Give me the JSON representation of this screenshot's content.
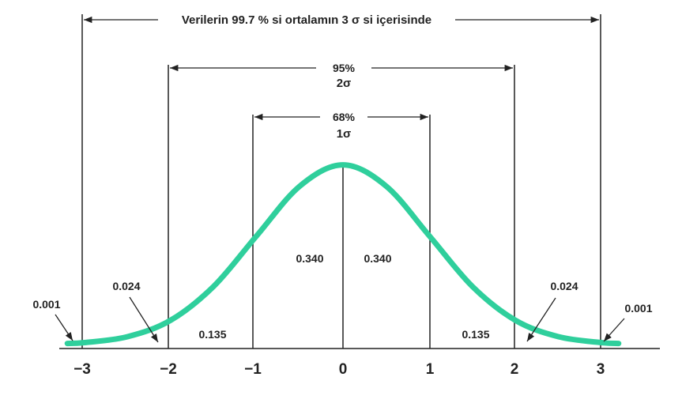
{
  "colors": {
    "curve": "#2fcf9c",
    "ink": "#222222",
    "background": "#ffffff"
  },
  "chart_data": {
    "type": "line",
    "series": [
      {
        "x": [
          -3.2,
          -3,
          -2.5,
          -2,
          -1.5,
          -1,
          -0.5,
          0,
          0.5,
          1,
          1.5,
          2,
          2.5,
          3,
          3.2
        ],
        "y": [
          0.0024,
          0.0044,
          0.0175,
          0.054,
          0.1295,
          0.242,
          0.352,
          0.399,
          0.352,
          0.242,
          0.1295,
          0.054,
          0.0175,
          0.0044,
          0.0024
        ]
      }
    ],
    "xlim": [
      -3.3,
      3.3
    ],
    "ticks": [
      "−3",
      "−2",
      "−1",
      "0",
      "1",
      "2",
      "3"
    ],
    "grid": false
  },
  "spans": {
    "three_sigma": "Verilerin 99.7 % si ortalamın 3 σ si içerisinde",
    "two_sigma_pct": "95%",
    "two_sigma": "2σ",
    "one_sigma_pct": "68%",
    "one_sigma": "1σ"
  },
  "areas": {
    "left_center": "0.340",
    "right_center": "0.340",
    "left_mid": "0.135",
    "right_mid": "0.135",
    "left_tail": "0.024",
    "right_tail": "0.024",
    "left_far": "0.001",
    "right_far": "0.001"
  }
}
